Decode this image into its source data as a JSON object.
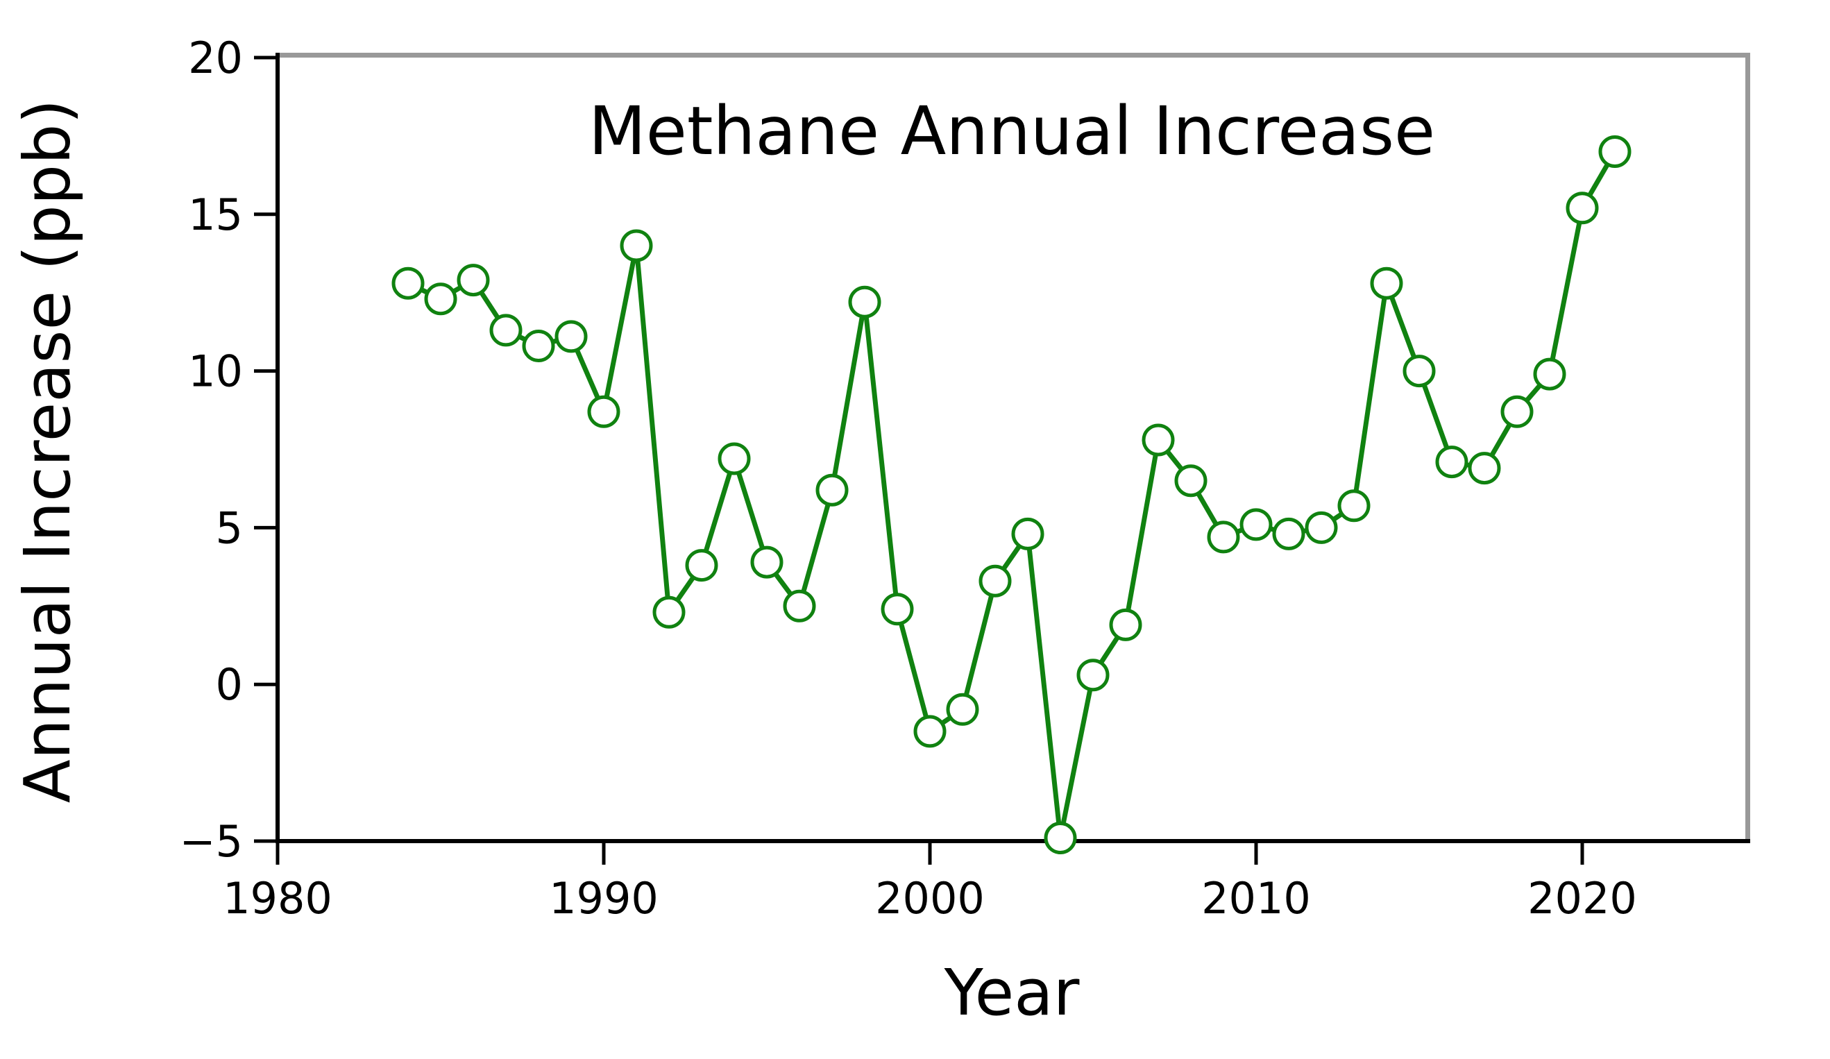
{
  "figure": {
    "background_color": "#ffffff",
    "text_color": "#000000"
  },
  "chart_data": {
    "type": "line",
    "title": "Methane Annual Increase",
    "xlabel": "Year",
    "ylabel": "Annual Increase (ppb)",
    "series": [
      {
        "name": "Methane annual increase",
        "x": [
          1984,
          1985,
          1986,
          1987,
          1988,
          1989,
          1990,
          1991,
          1992,
          1993,
          1994,
          1995,
          1996,
          1997,
          1998,
          1999,
          2000,
          2001,
          2002,
          2003,
          2004,
          2005,
          2006,
          2007,
          2008,
          2009,
          2010,
          2011,
          2012,
          2013,
          2014,
          2015,
          2016,
          2017,
          2018,
          2019,
          2020,
          2021
        ],
        "y": [
          12.8,
          12.3,
          12.9,
          11.3,
          10.8,
          11.1,
          8.7,
          14.0,
          2.3,
          3.8,
          7.2,
          3.9,
          2.5,
          6.2,
          12.2,
          2.4,
          -1.5,
          -0.8,
          3.3,
          4.8,
          -4.9,
          0.3,
          1.9,
          7.8,
          6.5,
          4.7,
          5.1,
          4.8,
          5.0,
          5.7,
          12.8,
          10.0,
          7.1,
          6.9,
          8.7,
          9.9,
          15.2,
          17.0
        ]
      }
    ],
    "xlim": [
      1980,
      2025
    ],
    "ylim": [
      -5,
      20
    ],
    "x_ticks": [
      1980,
      1990,
      2000,
      2010,
      2020
    ],
    "x_tick_labels": [
      "1980",
      "1990",
      "2000",
      "2010",
      "2020"
    ],
    "y_ticks": [
      -5,
      0,
      5,
      10,
      15,
      20
    ],
    "y_tick_labels": [
      "−5",
      "0",
      "5",
      "10",
      "15",
      "20"
    ],
    "grid": false,
    "legend": false,
    "marker_style": "open-circle",
    "colors": {
      "line": "#108210",
      "marker_face": "#ffffff",
      "marker_edge": "#108210",
      "spine_left": "#000000",
      "spine_bottom": "#000000",
      "spine_top": "#999999",
      "spine_right": "#999999",
      "tick": "#000000",
      "text": "#000000",
      "background": "#ffffff"
    }
  }
}
